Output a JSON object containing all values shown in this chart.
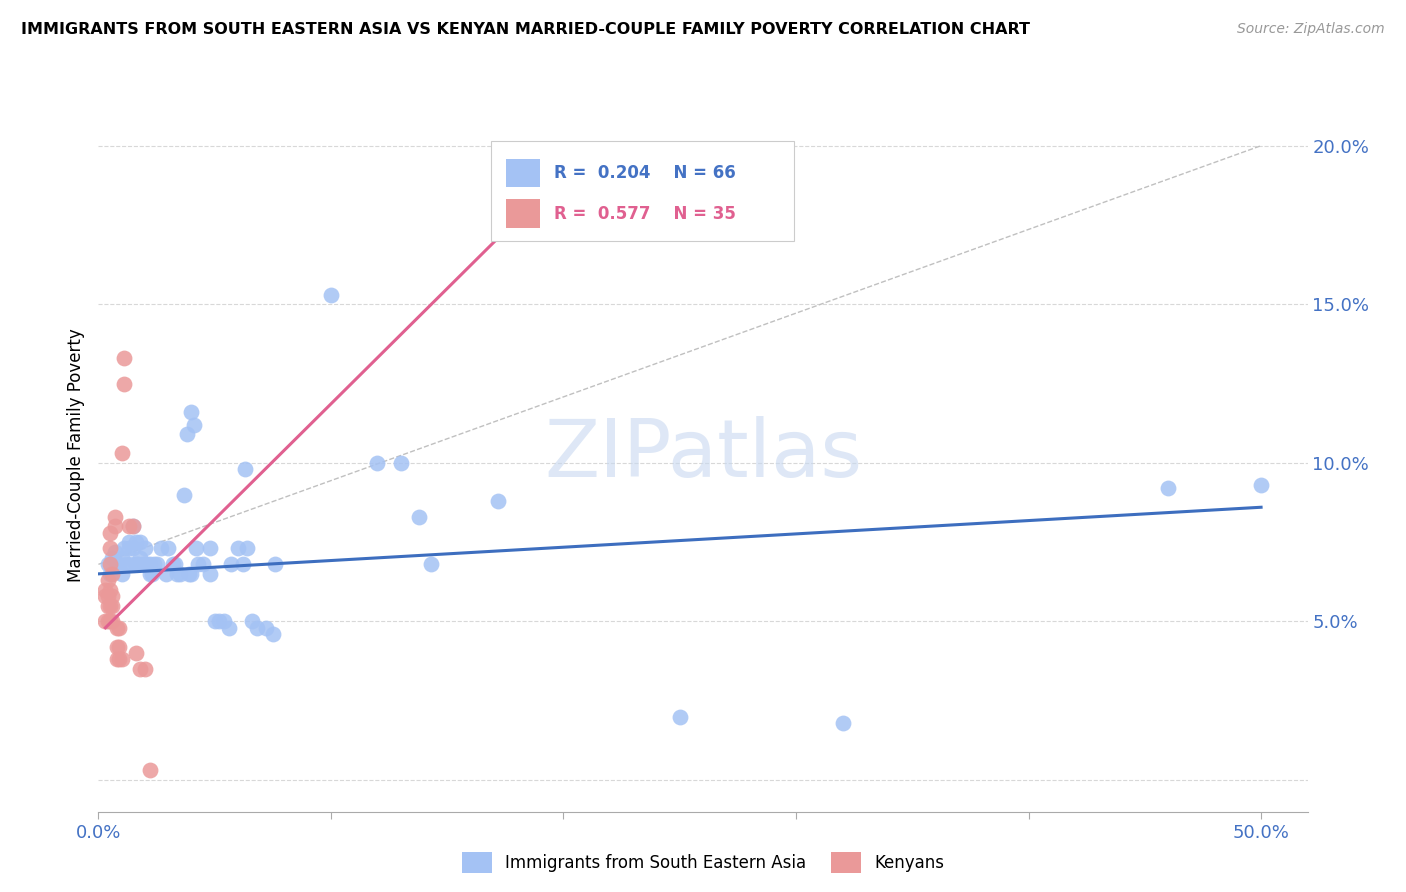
{
  "title": "IMMIGRANTS FROM SOUTH EASTERN ASIA VS KENYAN MARRIED-COUPLE FAMILY POVERTY CORRELATION CHART",
  "source": "Source: ZipAtlas.com",
  "ylabel": "Married-Couple Family Poverty",
  "yticks": [
    0.0,
    0.05,
    0.1,
    0.15,
    0.2
  ],
  "ytick_labels": [
    "",
    "5.0%",
    "10.0%",
    "15.0%",
    "20.0%"
  ],
  "xlim": [
    0.0,
    0.52
  ],
  "ylim": [
    -0.01,
    0.215
  ],
  "legend_label_blue": "Immigrants from South Eastern Asia",
  "legend_label_pink": "Kenyans",
  "color_blue": "#a4c2f4",
  "color_pink": "#ea9999",
  "trendline_blue_color": "#3d6ebf",
  "trendline_pink_color": "#e06090",
  "watermark": "ZIPatlas",
  "blue_scatter": [
    [
      0.004,
      0.068
    ],
    [
      0.005,
      0.065
    ],
    [
      0.006,
      0.07
    ],
    [
      0.007,
      0.072
    ],
    [
      0.008,
      0.068
    ],
    [
      0.009,
      0.068
    ],
    [
      0.01,
      0.07
    ],
    [
      0.01,
      0.065
    ],
    [
      0.011,
      0.073
    ],
    [
      0.012,
      0.068
    ],
    [
      0.013,
      0.073
    ],
    [
      0.013,
      0.075
    ],
    [
      0.014,
      0.068
    ],
    [
      0.015,
      0.073
    ],
    [
      0.015,
      0.08
    ],
    [
      0.016,
      0.075
    ],
    [
      0.016,
      0.068
    ],
    [
      0.017,
      0.068
    ],
    [
      0.018,
      0.075
    ],
    [
      0.018,
      0.07
    ],
    [
      0.019,
      0.068
    ],
    [
      0.02,
      0.068
    ],
    [
      0.02,
      0.073
    ],
    [
      0.021,
      0.068
    ],
    [
      0.022,
      0.068
    ],
    [
      0.022,
      0.065
    ],
    [
      0.023,
      0.065
    ],
    [
      0.024,
      0.068
    ],
    [
      0.025,
      0.068
    ],
    [
      0.027,
      0.073
    ],
    [
      0.029,
      0.065
    ],
    [
      0.03,
      0.073
    ],
    [
      0.032,
      0.068
    ],
    [
      0.033,
      0.068
    ],
    [
      0.034,
      0.065
    ],
    [
      0.035,
      0.065
    ],
    [
      0.037,
      0.09
    ],
    [
      0.038,
      0.109
    ],
    [
      0.039,
      0.065
    ],
    [
      0.04,
      0.065
    ],
    [
      0.04,
      0.116
    ],
    [
      0.041,
      0.112
    ],
    [
      0.042,
      0.073
    ],
    [
      0.043,
      0.068
    ],
    [
      0.045,
      0.068
    ],
    [
      0.048,
      0.073
    ],
    [
      0.048,
      0.065
    ],
    [
      0.05,
      0.05
    ],
    [
      0.052,
      0.05
    ],
    [
      0.054,
      0.05
    ],
    [
      0.056,
      0.048
    ],
    [
      0.057,
      0.068
    ],
    [
      0.06,
      0.073
    ],
    [
      0.062,
      0.068
    ],
    [
      0.063,
      0.098
    ],
    [
      0.064,
      0.073
    ],
    [
      0.066,
      0.05
    ],
    [
      0.068,
      0.048
    ],
    [
      0.072,
      0.048
    ],
    [
      0.075,
      0.046
    ],
    [
      0.076,
      0.068
    ],
    [
      0.1,
      0.153
    ],
    [
      0.12,
      0.1
    ],
    [
      0.13,
      0.1
    ],
    [
      0.138,
      0.083
    ],
    [
      0.143,
      0.068
    ],
    [
      0.172,
      0.088
    ],
    [
      0.25,
      0.02
    ],
    [
      0.32,
      0.018
    ],
    [
      0.46,
      0.092
    ],
    [
      0.5,
      0.093
    ]
  ],
  "pink_scatter": [
    [
      0.003,
      0.06
    ],
    [
      0.003,
      0.058
    ],
    [
      0.003,
      0.05
    ],
    [
      0.004,
      0.05
    ],
    [
      0.004,
      0.055
    ],
    [
      0.004,
      0.058
    ],
    [
      0.004,
      0.063
    ],
    [
      0.005,
      0.05
    ],
    [
      0.005,
      0.055
    ],
    [
      0.005,
      0.06
    ],
    [
      0.005,
      0.068
    ],
    [
      0.005,
      0.073
    ],
    [
      0.005,
      0.078
    ],
    [
      0.006,
      0.05
    ],
    [
      0.006,
      0.055
    ],
    [
      0.006,
      0.058
    ],
    [
      0.006,
      0.065
    ],
    [
      0.007,
      0.08
    ],
    [
      0.007,
      0.083
    ],
    [
      0.008,
      0.038
    ],
    [
      0.008,
      0.042
    ],
    [
      0.008,
      0.048
    ],
    [
      0.009,
      0.038
    ],
    [
      0.009,
      0.042
    ],
    [
      0.009,
      0.048
    ],
    [
      0.01,
      0.038
    ],
    [
      0.01,
      0.103
    ],
    [
      0.011,
      0.125
    ],
    [
      0.011,
      0.133
    ],
    [
      0.013,
      0.08
    ],
    [
      0.015,
      0.08
    ],
    [
      0.016,
      0.04
    ],
    [
      0.018,
      0.035
    ],
    [
      0.02,
      0.035
    ],
    [
      0.022,
      0.003
    ]
  ],
  "blue_trend_x": [
    0.0,
    0.5
  ],
  "blue_trend_y": [
    0.065,
    0.086
  ],
  "pink_trend_x": [
    0.003,
    0.205
  ],
  "pink_trend_y": [
    0.048,
    0.195
  ],
  "ref_line_x": [
    0.0,
    0.5
  ],
  "ref_line_y": [
    0.068,
    0.2
  ]
}
